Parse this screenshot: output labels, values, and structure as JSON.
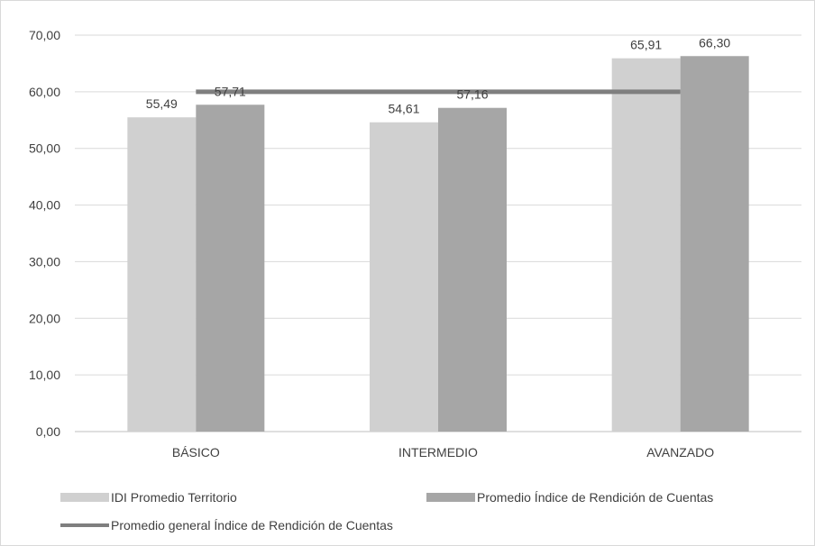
{
  "chart_data": {
    "type": "bar",
    "title": "",
    "xlabel": "",
    "ylabel": "",
    "ylim": [
      0,
      70
    ],
    "yticks": [
      "0,00",
      "10,00",
      "20,00",
      "30,00",
      "40,00",
      "50,00",
      "60,00",
      "70,00"
    ],
    "ytick_values": [
      0,
      10,
      20,
      30,
      40,
      50,
      60,
      70
    ],
    "grid": true,
    "legend_position": "bottom",
    "categories": [
      "BÁSICO",
      "INTERMEDIO",
      "AVANZADO"
    ],
    "series": [
      {
        "name": "IDI Promedio Territorio",
        "kind": "bar",
        "color": "#d0d0d0",
        "values": [
          55.49,
          54.61,
          65.91
        ],
        "labels": [
          "55,49",
          "54,61",
          "65,91"
        ]
      },
      {
        "name": "Promedio Índice de Rendición de Cuentas",
        "kind": "bar",
        "color": "#a6a6a6",
        "values": [
          57.71,
          57.16,
          66.3
        ],
        "labels": [
          "57,71",
          "57,16",
          "66,30"
        ]
      },
      {
        "name": "Promedio general Índice de Rendición de Cuentas",
        "kind": "line",
        "color": "#7f7f7f",
        "values": [
          60.0,
          60.0,
          60.0
        ]
      }
    ]
  }
}
